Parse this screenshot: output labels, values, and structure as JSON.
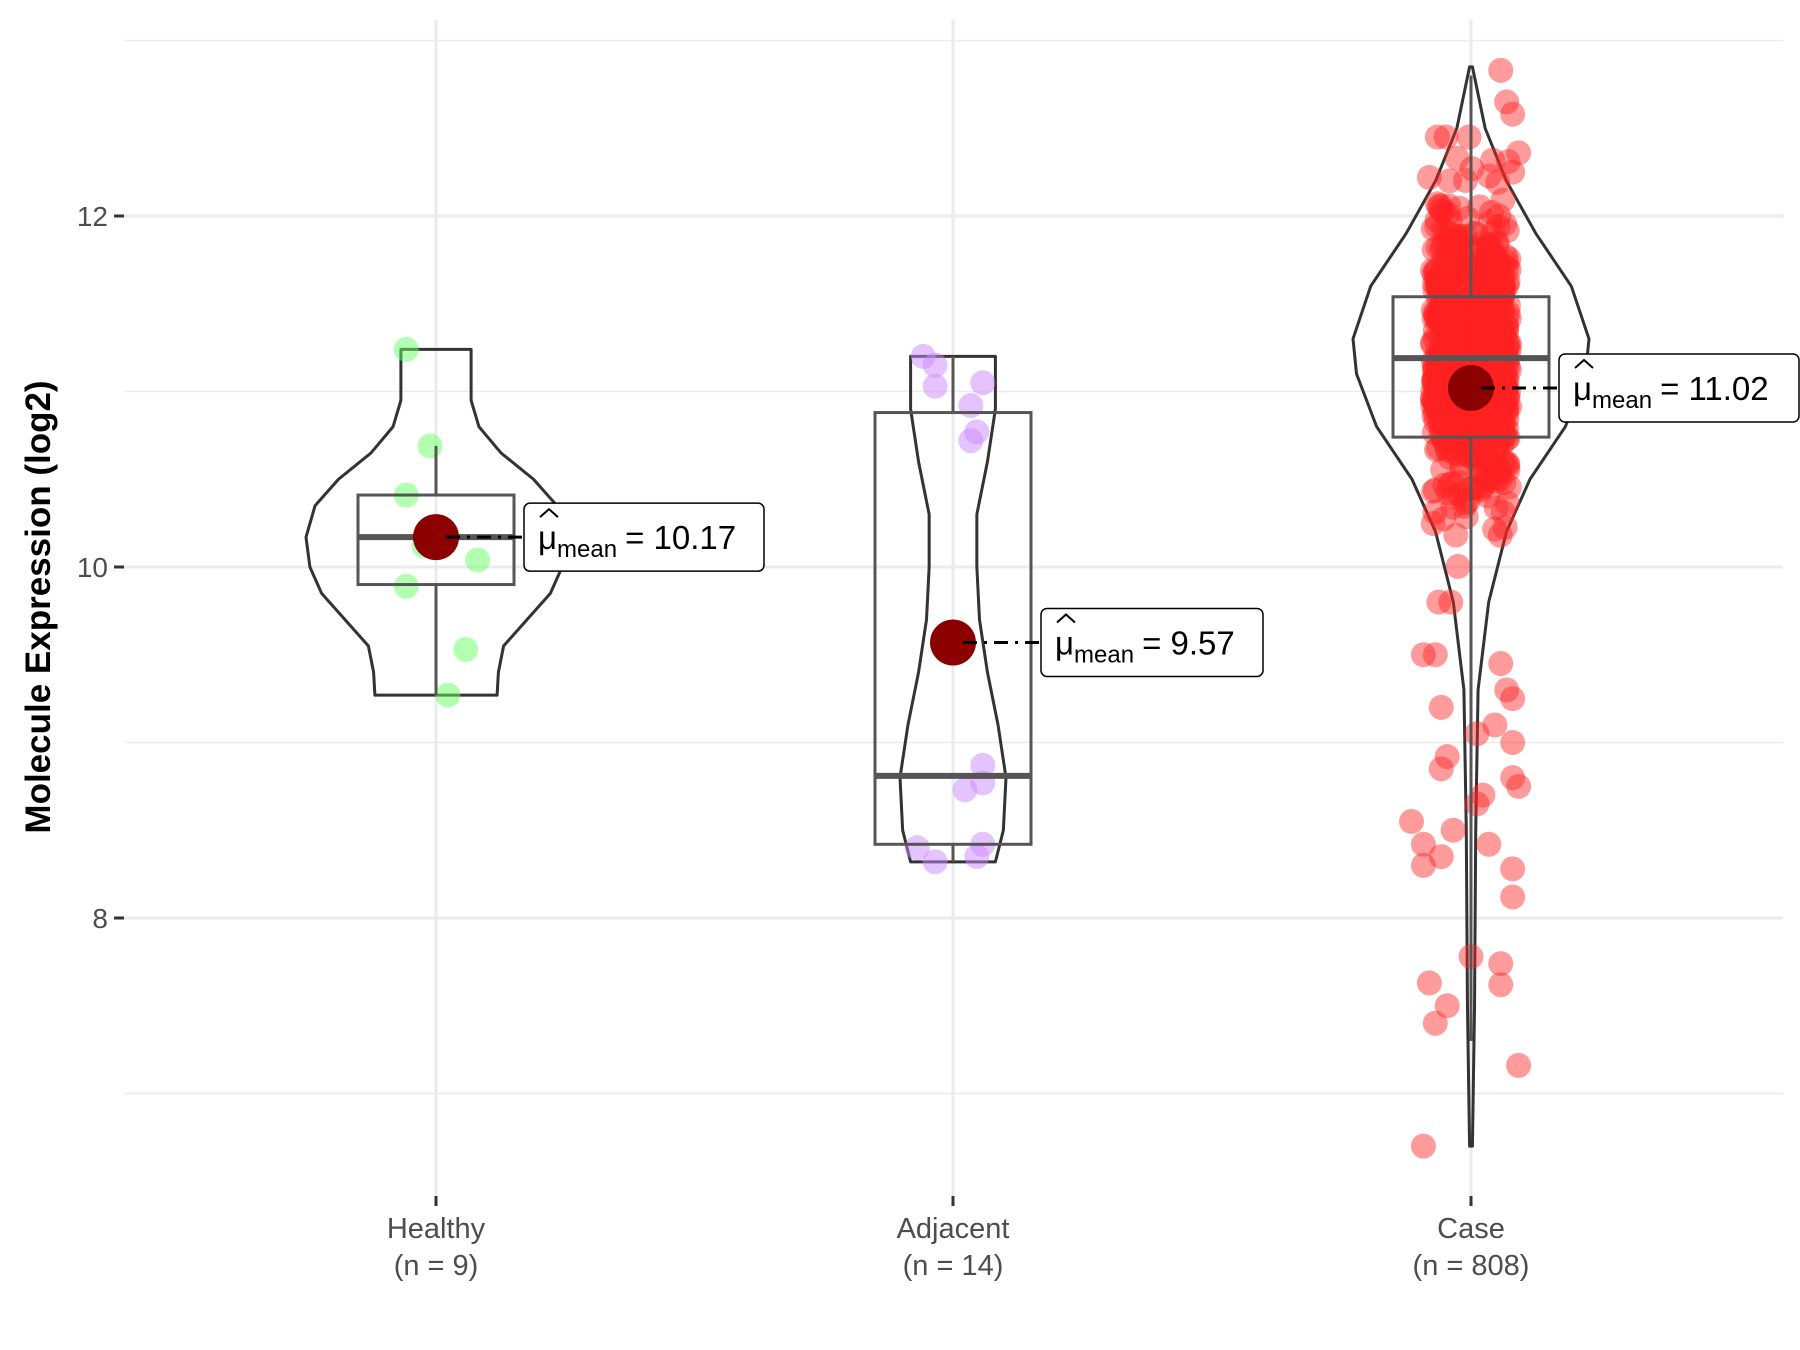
{
  "chart_data": {
    "type": "violin",
    "title": "",
    "xlabel": "",
    "ylabel": "Molecule Expression (log2)",
    "ylim": [
      6.4,
      13.05
    ],
    "y_major_ticks": [
      8,
      10,
      12
    ],
    "y_tick_labels": [
      "8",
      "10",
      "12"
    ],
    "y_minor_gridlines": [
      7,
      9,
      11,
      13
    ],
    "grid": true,
    "mean_label_prefix": "μ",
    "mean_label_sub": "mean",
    "groups": [
      {
        "name": "Healthy",
        "n_label": "(n = 9)",
        "n": 9,
        "color": "#66ff66",
        "mean": 10.17,
        "mean_label": "= 10.17",
        "box": {
          "whisker_low": 9.27,
          "q1": 9.9,
          "median": 10.17,
          "q3": 10.41,
          "whisker_high": 10.69
        },
        "violin": [
          [
            9.27,
            0.47
          ],
          [
            9.4,
            0.48
          ],
          [
            9.55,
            0.52
          ],
          [
            9.7,
            0.7
          ],
          [
            9.85,
            0.88
          ],
          [
            10.0,
            0.97
          ],
          [
            10.17,
            1.0
          ],
          [
            10.35,
            0.93
          ],
          [
            10.5,
            0.75
          ],
          [
            10.65,
            0.5
          ],
          [
            10.8,
            0.33
          ],
          [
            10.95,
            0.27
          ],
          [
            11.1,
            0.27
          ],
          [
            11.24,
            0.27
          ]
        ],
        "points": [
          [
            -0.05,
            11.24
          ],
          [
            -0.01,
            10.69
          ],
          [
            -0.05,
            10.41
          ],
          [
            -0.01,
            10.22
          ],
          [
            -0.02,
            10.12
          ],
          [
            0.07,
            10.04
          ],
          [
            -0.05,
            9.89
          ],
          [
            0.05,
            9.53
          ],
          [
            0.02,
            9.27
          ]
        ]
      },
      {
        "name": "Adjacent",
        "n_label": "(n = 14)",
        "n": 14,
        "color": "#cc88ff",
        "mean": 9.57,
        "mean_label": "= 9.57",
        "box": {
          "whisker_low": 8.32,
          "q1": 8.42,
          "median": 8.81,
          "q3": 10.88,
          "whisker_high": 11.2
        },
        "violin": [
          [
            8.32,
            0.8
          ],
          [
            8.5,
            0.95
          ],
          [
            8.8,
            1.0
          ],
          [
            9.1,
            0.85
          ],
          [
            9.4,
            0.65
          ],
          [
            9.7,
            0.5
          ],
          [
            10.0,
            0.45
          ],
          [
            10.3,
            0.45
          ],
          [
            10.6,
            0.65
          ],
          [
            10.9,
            0.8
          ],
          [
            11.2,
            0.8
          ]
        ],
        "points": [
          [
            -0.05,
            11.2
          ],
          [
            -0.03,
            11.15
          ],
          [
            -0.03,
            11.03
          ],
          [
            0.05,
            11.05
          ],
          [
            0.03,
            10.92
          ],
          [
            0.04,
            10.77
          ],
          [
            0.03,
            10.72
          ],
          [
            0.05,
            8.87
          ],
          [
            0.05,
            8.77
          ],
          [
            0.02,
            8.73
          ],
          [
            -0.06,
            8.4
          ],
          [
            0.05,
            8.42
          ],
          [
            0.04,
            8.35
          ],
          [
            -0.03,
            8.32
          ]
        ]
      },
      {
        "name": "Case",
        "n_label": "(n = 808)",
        "n": 808,
        "color": "#ff2222",
        "mean": 11.02,
        "mean_label": "= 11.02",
        "box": {
          "whisker_low": 7.3,
          "q1": 10.74,
          "median": 11.19,
          "q3": 11.54,
          "whisker_high": 12.8
        },
        "violin": [
          [
            6.7,
            0.012
          ],
          [
            7.5,
            0.03
          ],
          [
            8.5,
            0.04
          ],
          [
            9.3,
            0.06
          ],
          [
            9.8,
            0.15
          ],
          [
            10.2,
            0.3
          ],
          [
            10.5,
            0.5
          ],
          [
            10.8,
            0.8
          ],
          [
            11.1,
            0.97
          ],
          [
            11.3,
            1.0
          ],
          [
            11.6,
            0.85
          ],
          [
            11.9,
            0.55
          ],
          [
            12.2,
            0.3
          ],
          [
            12.5,
            0.12
          ],
          [
            12.85,
            0.012
          ]
        ],
        "core_distribution": {
          "mean": 11.2,
          "sd": 0.42
        },
        "points": [
          [
            0.05,
            12.83
          ],
          [
            0.06,
            12.65
          ],
          [
            0.07,
            12.58
          ],
          [
            0.08,
            12.36
          ],
          [
            0.07,
            12.25
          ],
          [
            -0.07,
            12.22
          ],
          [
            -0.06,
            9.5
          ],
          [
            -0.08,
            9.5
          ],
          [
            0.05,
            9.45
          ],
          [
            0.06,
            9.3
          ],
          [
            0.07,
            9.25
          ],
          [
            -0.05,
            9.2
          ],
          [
            0.04,
            9.1
          ],
          [
            0.01,
            9.05
          ],
          [
            0.07,
            9.0
          ],
          [
            -0.04,
            8.92
          ],
          [
            -0.05,
            8.85
          ],
          [
            0.07,
            8.8
          ],
          [
            0.08,
            8.75
          ],
          [
            0.02,
            8.7
          ],
          [
            0.01,
            8.65
          ],
          [
            -0.1,
            8.55
          ],
          [
            -0.03,
            8.5
          ],
          [
            -0.08,
            8.42
          ],
          [
            0.03,
            8.42
          ],
          [
            -0.05,
            8.35
          ],
          [
            -0.08,
            8.3
          ],
          [
            0.07,
            8.28
          ],
          [
            0.07,
            8.12
          ],
          [
            0.0,
            7.78
          ],
          [
            0.05,
            7.74
          ],
          [
            -0.07,
            7.63
          ],
          [
            0.05,
            7.62
          ],
          [
            -0.06,
            7.4
          ],
          [
            -0.04,
            7.5
          ],
          [
            0.08,
            7.16
          ],
          [
            -0.08,
            6.7
          ]
        ]
      }
    ]
  }
}
